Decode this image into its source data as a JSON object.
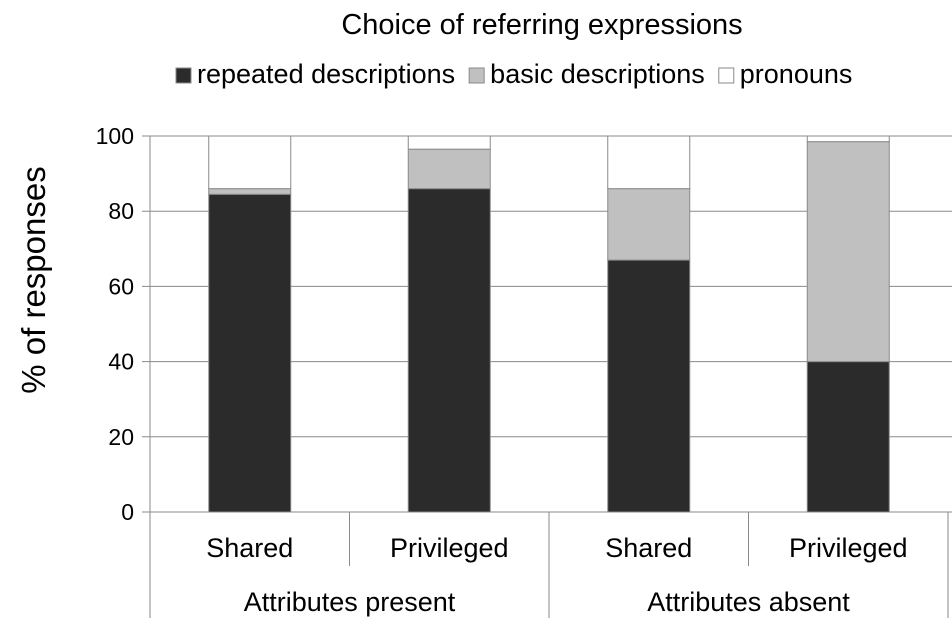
{
  "chart_data": {
    "type": "bar",
    "stacked": true,
    "title": "Choice of referring expressions",
    "ylabel": "% of responses",
    "xlabel": "",
    "ylim": [
      0,
      100
    ],
    "yticks": [
      0,
      20,
      40,
      60,
      80,
      100
    ],
    "grid": true,
    "legend_position": "top",
    "categories": [
      "Shared",
      "Privileged",
      "Shared",
      "Privileged"
    ],
    "groups": [
      {
        "label": "Attributes present",
        "categories": [
          "Shared",
          "Privileged"
        ]
      },
      {
        "label": "Attributes absent",
        "categories": [
          "Shared",
          "Privileged"
        ]
      }
    ],
    "series": [
      {
        "name": "repeated descriptions",
        "color": "#2b2b2b",
        "values": [
          84.5,
          86,
          67,
          40
        ]
      },
      {
        "name": "basic descriptions",
        "color": "#c0c0c0",
        "values": [
          1.5,
          10.5,
          19,
          58.5
        ]
      },
      {
        "name": "pronouns",
        "color": "#ffffff",
        "values": [
          14,
          3.5,
          14,
          1.5
        ]
      }
    ]
  }
}
